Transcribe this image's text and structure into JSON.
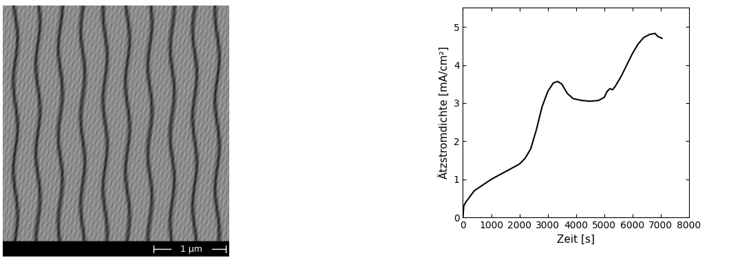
{
  "image": {
    "scale_bar": "1 µm"
  },
  "chart_data": {
    "type": "line",
    "x_label": "Zeit [s]",
    "y_label": "Ätzstromdichte [mA/cm²]",
    "x": [
      0,
      30,
      100,
      200,
      400,
      600,
      1000,
      1500,
      2000,
      2200,
      2400,
      2600,
      2800,
      3000,
      3200,
      3350,
      3500,
      3700,
      3900,
      4200,
      4500,
      4800,
      5000,
      5100,
      5200,
      5300,
      5400,
      5600,
      5800,
      6000,
      6200,
      6400,
      6600,
      6800,
      6900,
      7050
    ],
    "values": [
      0,
      0.3,
      0.4,
      0.5,
      0.7,
      0.8,
      1.0,
      1.2,
      1.4,
      1.55,
      1.8,
      2.3,
      2.9,
      3.3,
      3.53,
      3.57,
      3.5,
      3.25,
      3.12,
      3.07,
      3.05,
      3.07,
      3.15,
      3.3,
      3.38,
      3.35,
      3.45,
      3.7,
      4.0,
      4.3,
      4.55,
      4.72,
      4.8,
      4.83,
      4.75,
      4.7
    ],
    "color": "#000000",
    "xlim": [
      0,
      8000
    ],
    "xticks": [
      0,
      1000,
      2000,
      3000,
      4000,
      5000,
      6000,
      7000,
      8000
    ],
    "ylim": [
      0,
      5.5
    ],
    "yticks": [
      0,
      1,
      2,
      3,
      4,
      5
    ],
    "grid": false
  }
}
